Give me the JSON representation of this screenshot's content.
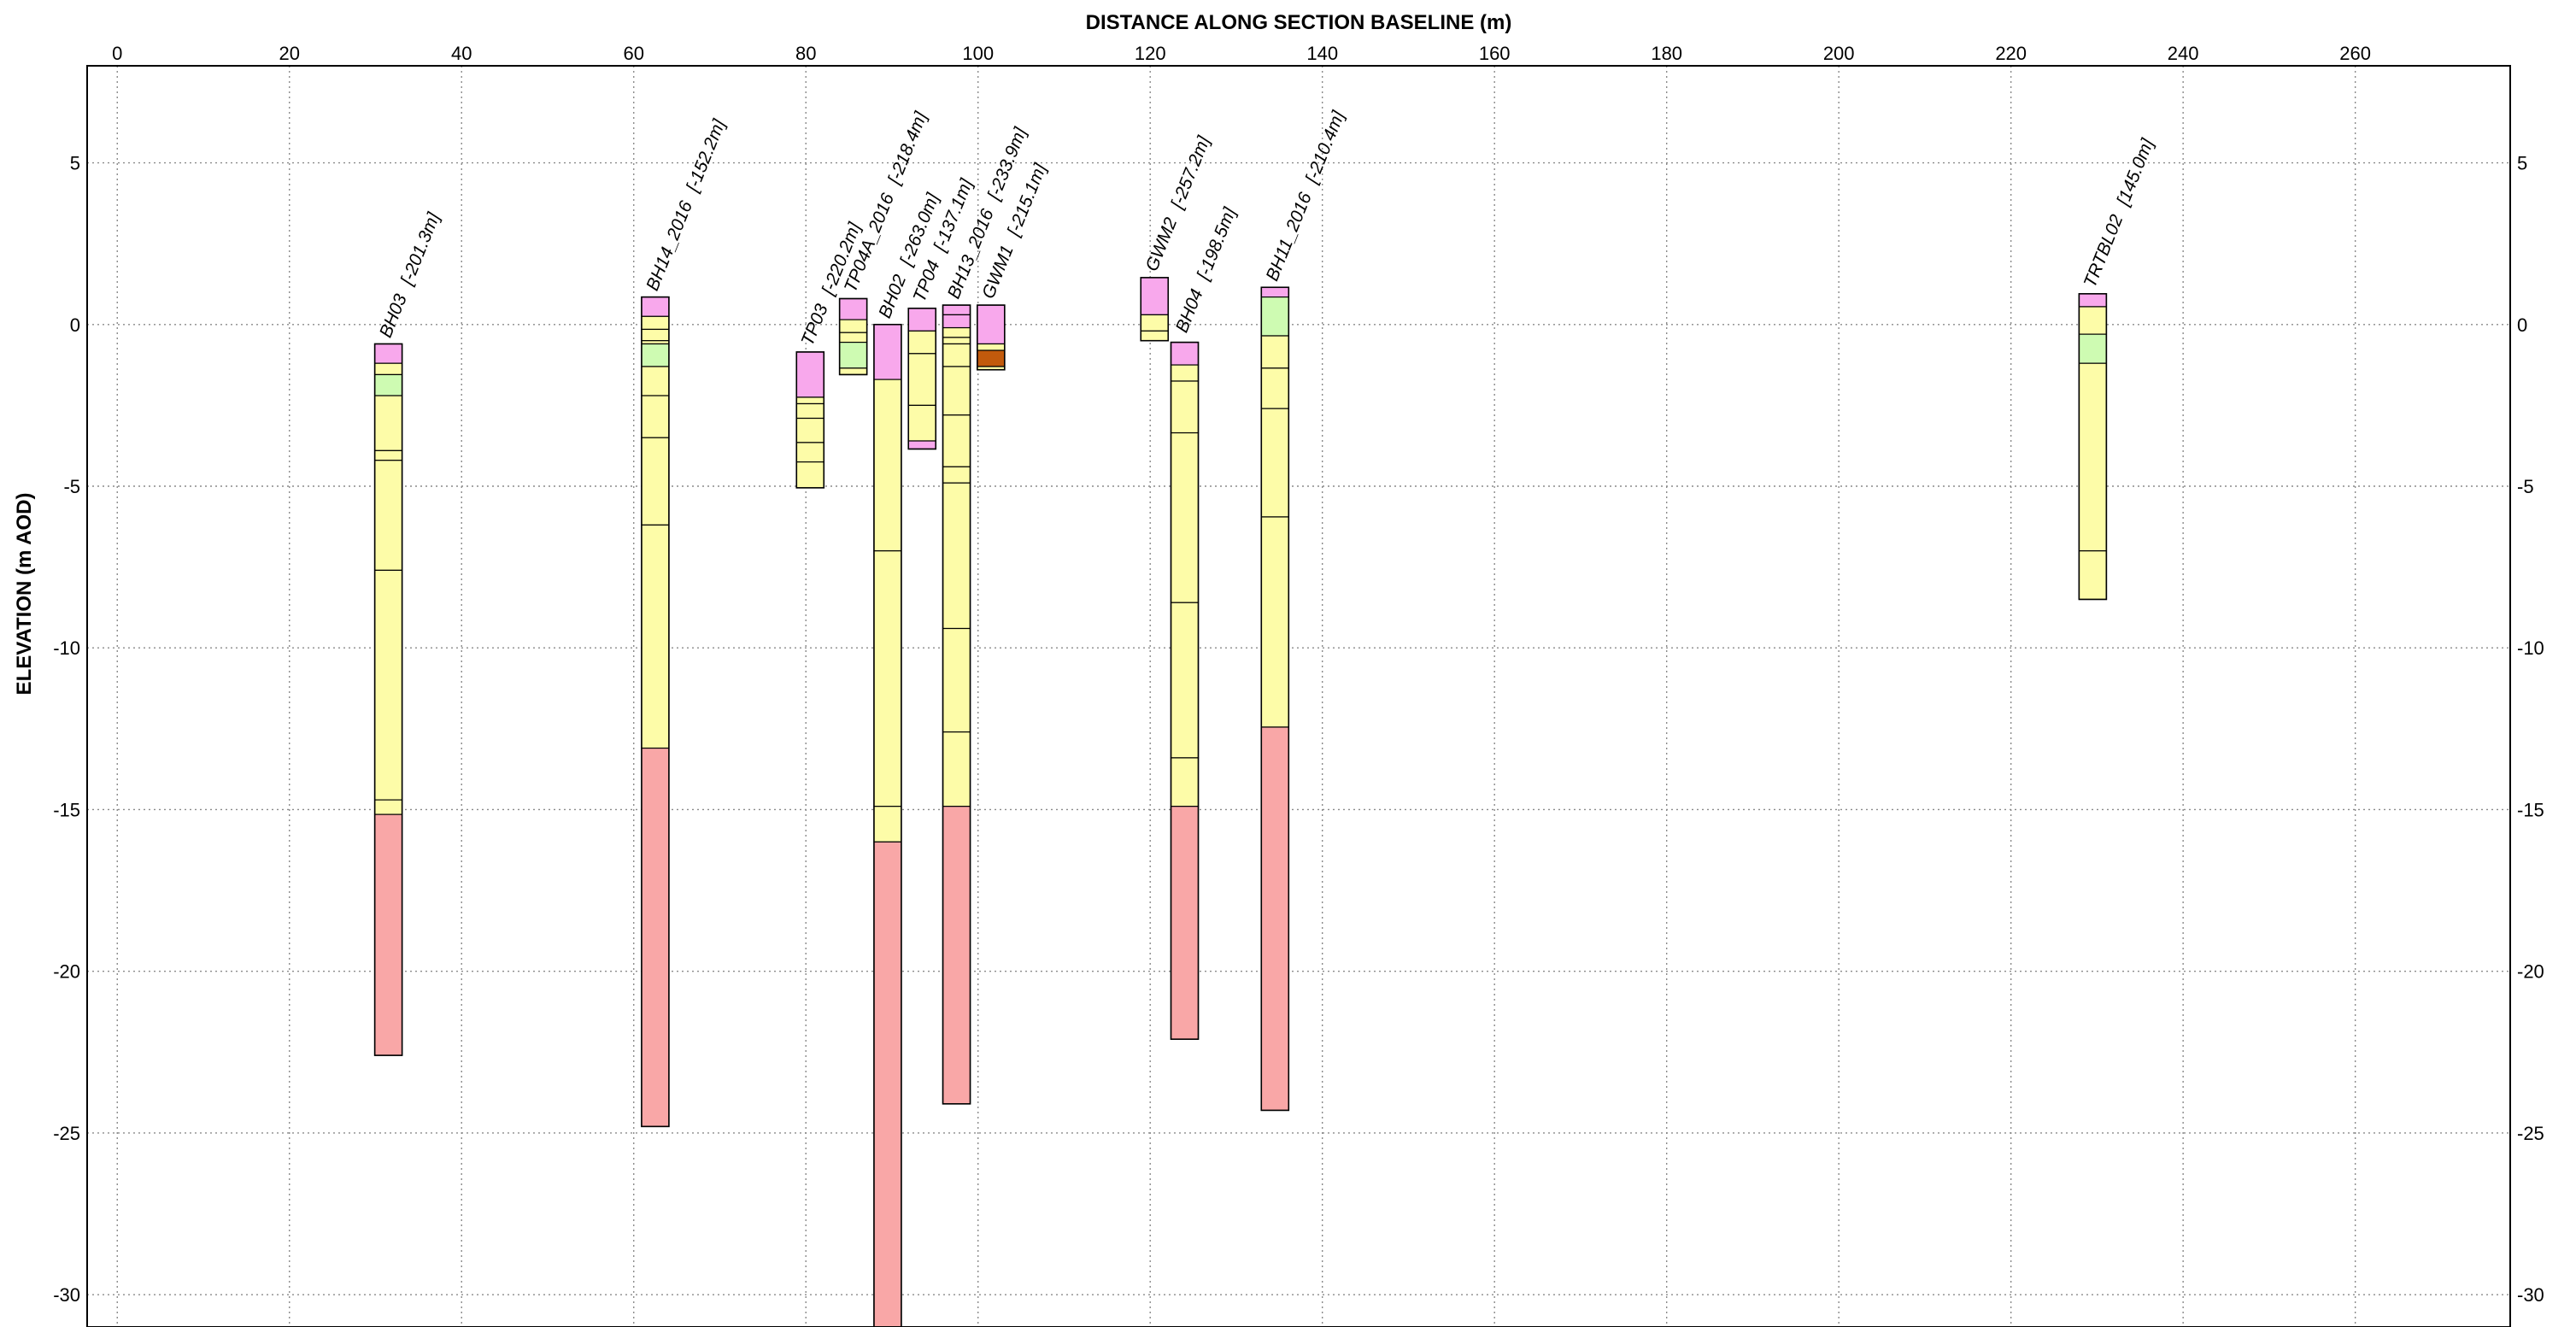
{
  "section": {
    "x_title": "DISTANCE ALONG SECTION BASELINE (m)",
    "y_title": "ELEVATION (m AOD)",
    "x_range": [
      -3.5,
      278
    ],
    "y_range": [
      -31,
      8
    ],
    "x_ticks": [
      "0",
      "20",
      "40",
      "60",
      "80",
      "100",
      "120",
      "140",
      "160",
      "180",
      "200",
      "220",
      "240",
      "260"
    ],
    "y_ticks": [
      "5",
      "0",
      "-5",
      "-10",
      "-15",
      "-20",
      "-25",
      "-30"
    ],
    "grid": "dotted"
  },
  "colors": {
    "pink": "#f8a8ec",
    "green": "#cefbb2",
    "yellow": "#fdfca8",
    "red": "#f9a7a7",
    "brown": "#c25a0c",
    "frame": "#000000",
    "grid": "#8a8a8a"
  },
  "boreholes": [
    {
      "name": "BH03",
      "offset": "[-201.3m]",
      "x": 31.5,
      "label_row": 0,
      "layers": [
        {
          "top": -0.6,
          "bottom": -1.2,
          "color": "pink"
        },
        {
          "top": -1.2,
          "bottom": -1.55,
          "color": "yellow"
        },
        {
          "top": -1.55,
          "bottom": -2.2,
          "color": "green"
        },
        {
          "top": -2.2,
          "bottom": -3.9,
          "color": "yellow"
        },
        {
          "top": -3.9,
          "bottom": -4.2,
          "color": "yellow"
        },
        {
          "top": -4.2,
          "bottom": -7.6,
          "color": "yellow"
        },
        {
          "top": -7.6,
          "bottom": -14.7,
          "color": "yellow"
        },
        {
          "top": -14.7,
          "bottom": -15.15,
          "color": "yellow"
        },
        {
          "top": -15.15,
          "bottom": -22.6,
          "color": "red"
        }
      ]
    },
    {
      "name": "BH14_2016",
      "offset": "[-152.2m]",
      "x": 62.5,
      "label_row": 0,
      "layers": [
        {
          "top": 0.85,
          "bottom": 0.25,
          "color": "pink"
        },
        {
          "top": 0.25,
          "bottom": -0.15,
          "color": "yellow"
        },
        {
          "top": -0.15,
          "bottom": -0.5,
          "color": "yellow"
        },
        {
          "top": -0.5,
          "bottom": -0.6,
          "color": "yellow"
        },
        {
          "top": -0.6,
          "bottom": -1.3,
          "color": "green"
        },
        {
          "top": -1.3,
          "bottom": -2.2,
          "color": "yellow"
        },
        {
          "top": -2.2,
          "bottom": -3.5,
          "color": "yellow"
        },
        {
          "top": -3.5,
          "bottom": -6.2,
          "color": "yellow"
        },
        {
          "top": -6.2,
          "bottom": -13.1,
          "color": "yellow"
        },
        {
          "top": -13.1,
          "bottom": -24.8,
          "color": "red"
        }
      ]
    },
    {
      "name": "TP03",
      "offset": "[-220.2m]",
      "x": 80.5,
      "label_row": 0,
      "layers": [
        {
          "top": -0.85,
          "bottom": -2.25,
          "color": "pink"
        },
        {
          "top": -2.25,
          "bottom": -2.45,
          "color": "yellow"
        },
        {
          "top": -2.45,
          "bottom": -2.9,
          "color": "yellow"
        },
        {
          "top": -2.9,
          "bottom": -3.65,
          "color": "yellow"
        },
        {
          "top": -3.65,
          "bottom": -4.25,
          "color": "yellow"
        },
        {
          "top": -4.25,
          "bottom": -5.05,
          "color": "yellow"
        }
      ]
    },
    {
      "name": "TP04A_2016",
      "offset": "[-218.4m]",
      "x": 85.5,
      "label_row": 0,
      "layers": [
        {
          "top": 0.8,
          "bottom": 0.15,
          "color": "pink"
        },
        {
          "top": 0.15,
          "bottom": -0.25,
          "color": "yellow"
        },
        {
          "top": -0.25,
          "bottom": -0.55,
          "color": "yellow"
        },
        {
          "top": -0.55,
          "bottom": -1.35,
          "color": "green"
        },
        {
          "top": -1.35,
          "bottom": -1.55,
          "color": "yellow"
        }
      ]
    },
    {
      "name": "BH02",
      "offset": "[-263.0m]",
      "x": 89.5,
      "label_row": 0,
      "layers": [
        {
          "top": 0.0,
          "bottom": -1.7,
          "color": "pink"
        },
        {
          "top": -1.7,
          "bottom": -7.0,
          "color": "yellow"
        },
        {
          "top": -7.0,
          "bottom": -14.9,
          "color": "yellow"
        },
        {
          "top": -14.9,
          "bottom": -16.0,
          "color": "yellow"
        },
        {
          "top": -16.0,
          "bottom": -31.0,
          "color": "red"
        }
      ]
    },
    {
      "name": "TP04",
      "offset": "[-137.1m]",
      "x": 93.5,
      "label_row": 0,
      "layers": [
        {
          "top": 0.5,
          "bottom": -0.2,
          "color": "pink"
        },
        {
          "top": -0.2,
          "bottom": -0.9,
          "color": "yellow"
        },
        {
          "top": -0.9,
          "bottom": -2.5,
          "color": "yellow"
        },
        {
          "top": -2.5,
          "bottom": -3.6,
          "color": "yellow"
        },
        {
          "top": -3.6,
          "bottom": -3.85,
          "color": "pink"
        }
      ]
    },
    {
      "name": "BH13_2016",
      "offset": "[-233.9m]",
      "x": 97.5,
      "label_row": 0,
      "layers": [
        {
          "top": 0.6,
          "bottom": 0.3,
          "color": "pink"
        },
        {
          "top": 0.3,
          "bottom": -0.1,
          "color": "pink"
        },
        {
          "top": -0.1,
          "bottom": -0.4,
          "color": "yellow"
        },
        {
          "top": -0.4,
          "bottom": -0.6,
          "color": "yellow"
        },
        {
          "top": -0.6,
          "bottom": -1.3,
          "color": "yellow"
        },
        {
          "top": -1.3,
          "bottom": -2.8,
          "color": "yellow"
        },
        {
          "top": -2.8,
          "bottom": -4.4,
          "color": "yellow"
        },
        {
          "top": -4.4,
          "bottom": -4.9,
          "color": "yellow"
        },
        {
          "top": -4.9,
          "bottom": -9.4,
          "color": "yellow"
        },
        {
          "top": -9.4,
          "bottom": -12.6,
          "color": "yellow"
        },
        {
          "top": -12.6,
          "bottom": -14.9,
          "color": "yellow"
        },
        {
          "top": -14.9,
          "bottom": -24.1,
          "color": "red"
        }
      ]
    },
    {
      "name": "GWM1",
      "offset": "[-215.1m]",
      "x": 101.5,
      "label_row": 0,
      "layers": [
        {
          "top": 0.6,
          "bottom": -0.6,
          "color": "pink"
        },
        {
          "top": -0.6,
          "bottom": -0.8,
          "color": "yellow"
        },
        {
          "top": -0.8,
          "bottom": -1.3,
          "color": "brown"
        },
        {
          "top": -1.3,
          "bottom": -1.4,
          "color": "yellow"
        }
      ]
    },
    {
      "name": "GWM2",
      "offset": "[-257.2m]",
      "x": 120.5,
      "label_row": 0,
      "layers": [
        {
          "top": 1.45,
          "bottom": 0.3,
          "color": "pink"
        },
        {
          "top": 0.3,
          "bottom": -0.2,
          "color": "yellow"
        },
        {
          "top": -0.2,
          "bottom": -0.5,
          "color": "yellow"
        }
      ]
    },
    {
      "name": "BH04",
      "offset": "[-198.5m]",
      "x": 124,
      "label_row": 1,
      "layers": [
        {
          "top": -0.55,
          "bottom": -1.25,
          "color": "pink"
        },
        {
          "top": -1.25,
          "bottom": -1.75,
          "color": "yellow"
        },
        {
          "top": -1.75,
          "bottom": -3.35,
          "color": "yellow"
        },
        {
          "top": -3.35,
          "bottom": -8.6,
          "color": "yellow"
        },
        {
          "top": -8.6,
          "bottom": -13.4,
          "color": "yellow"
        },
        {
          "top": -13.4,
          "bottom": -14.9,
          "color": "yellow"
        },
        {
          "top": -14.9,
          "bottom": -22.1,
          "color": "red"
        }
      ]
    },
    {
      "name": "BH11_2016",
      "offset": "[-210.4m]",
      "x": 134.5,
      "label_row": 0,
      "layers": [
        {
          "top": 1.15,
          "bottom": 0.85,
          "color": "pink"
        },
        {
          "top": 0.85,
          "bottom": -0.35,
          "color": "green"
        },
        {
          "top": -0.35,
          "bottom": -1.35,
          "color": "yellow"
        },
        {
          "top": -1.35,
          "bottom": -2.6,
          "color": "yellow"
        },
        {
          "top": -2.6,
          "bottom": -5.95,
          "color": "yellow"
        },
        {
          "top": -5.95,
          "bottom": -12.45,
          "color": "yellow"
        },
        {
          "top": -12.45,
          "bottom": -24.3,
          "color": "red"
        }
      ]
    },
    {
      "name": "TRTBL02",
      "offset": "[145.0m]",
      "x": 229.5,
      "label_row": 0,
      "layers": [
        {
          "top": 0.95,
          "bottom": 0.55,
          "color": "pink"
        },
        {
          "top": 0.55,
          "bottom": -0.3,
          "color": "yellow"
        },
        {
          "top": -0.3,
          "bottom": -1.2,
          "color": "green"
        },
        {
          "top": -1.2,
          "bottom": -7.0,
          "color": "yellow"
        },
        {
          "top": -7.0,
          "bottom": -8.5,
          "color": "yellow"
        }
      ]
    }
  ]
}
